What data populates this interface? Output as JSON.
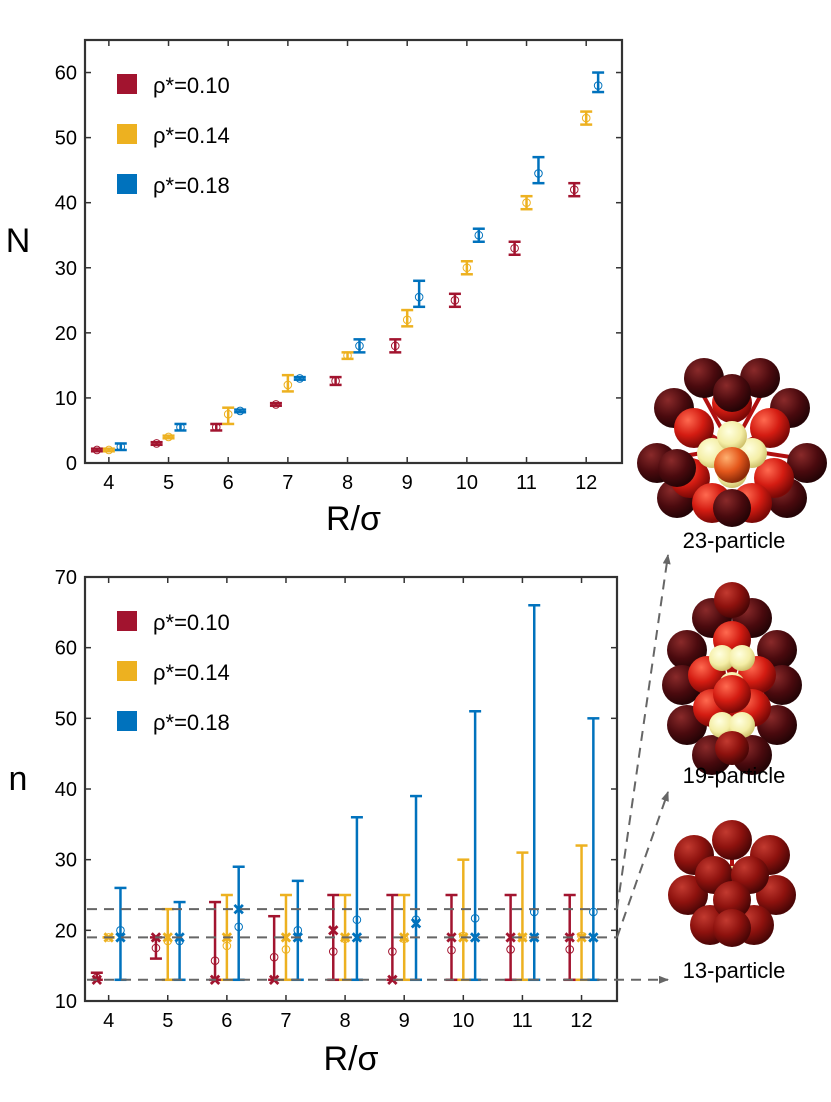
{
  "chart_data": [
    {
      "type": "scatter",
      "xlabel": "R/σ",
      "ylabel": "N",
      "xlim": [
        3.6,
        12.6
      ],
      "ylim": [
        0,
        65
      ],
      "xticks": [
        4,
        5,
        6,
        7,
        8,
        9,
        10,
        11,
        12
      ],
      "yticks": [
        0,
        10,
        20,
        30,
        40,
        50,
        60
      ],
      "legend": "top-left",
      "grid": false,
      "series": [
        {
          "name": "ρ*=0.10",
          "color": "#A2142F",
          "x": [
            4,
            5,
            6,
            7,
            8,
            9,
            10,
            11,
            12
          ],
          "mean": [
            2.0,
            3.0,
            5.5,
            9.0,
            12.6,
            18.0,
            25.0,
            33.0,
            42.0
          ],
          "err_low": [
            1.8,
            2.8,
            5.0,
            8.8,
            12.0,
            17.0,
            24.0,
            32.0,
            41.0
          ],
          "err_high": [
            2.2,
            3.2,
            6.0,
            9.2,
            13.2,
            19.0,
            26.0,
            34.0,
            43.0
          ]
        },
        {
          "name": "ρ*=0.14",
          "color": "#EDB120",
          "x": [
            4,
            5,
            6,
            7,
            8,
            9,
            10,
            11,
            12
          ],
          "mean": [
            2.0,
            4.0,
            7.5,
            12.0,
            16.5,
            22.0,
            30.0,
            40.0,
            53.0
          ],
          "err_low": [
            1.8,
            3.8,
            6.0,
            11.0,
            16.0,
            21.0,
            29.0,
            39.0,
            52.0
          ],
          "err_high": [
            2.2,
            4.2,
            8.5,
            13.5,
            17.0,
            23.5,
            31.0,
            41.0,
            54.0
          ]
        },
        {
          "name": "ρ*=0.18",
          "color": "#0072BD",
          "x": [
            4,
            5,
            6,
            7,
            8,
            9,
            10,
            11,
            12
          ],
          "mean": [
            2.5,
            5.5,
            8.0,
            13.0,
            18.0,
            25.5,
            35.0,
            44.5,
            58.0
          ],
          "err_low": [
            2.0,
            5.0,
            7.8,
            12.8,
            17.0,
            24.0,
            34.0,
            43.0,
            57.0
          ],
          "err_high": [
            3.0,
            6.0,
            8.2,
            13.2,
            19.0,
            28.0,
            36.0,
            47.0,
            60.0
          ]
        }
      ]
    },
    {
      "type": "scatter",
      "xlabel": "R/σ",
      "ylabel": "n",
      "xlim": [
        3.6,
        12.6
      ],
      "ylim": [
        10,
        70
      ],
      "xticks": [
        4,
        5,
        6,
        7,
        8,
        9,
        10,
        11,
        12
      ],
      "yticks": [
        10,
        20,
        30,
        40,
        50,
        60,
        70
      ],
      "legend": "top-left",
      "grid": false,
      "reference_lines": [
        13,
        19,
        23
      ],
      "series": [
        {
          "name": "ρ*=0.10",
          "color": "#A2142F",
          "x": [
            4,
            5,
            6,
            7,
            8,
            9,
            10,
            11,
            12
          ],
          "mode": [
            13,
            19,
            13,
            13,
            20,
            13,
            19,
            19,
            19
          ],
          "mean": [
            13.3,
            17.5,
            15.7,
            16.2,
            17.0,
            17.0,
            17.2,
            17.3,
            17.3
          ],
          "min": [
            13,
            16,
            13,
            13,
            13,
            13,
            13,
            13,
            13
          ],
          "max": [
            14,
            19,
            24,
            22,
            25,
            25,
            25,
            25,
            25
          ]
        },
        {
          "name": "ρ*=0.14",
          "color": "#EDB120",
          "x": [
            4,
            5,
            6,
            7,
            8,
            9,
            10,
            11,
            12
          ],
          "mode": [
            19,
            19,
            19,
            19,
            19,
            19,
            19,
            19,
            19
          ],
          "mean": [
            19.0,
            18.5,
            17.8,
            17.3,
            18.8,
            18.8,
            19.2,
            19.0,
            19.2
          ],
          "min": [
            19,
            13,
            13,
            13,
            13,
            13,
            13,
            13,
            13
          ],
          "max": [
            19,
            23,
            25,
            25,
            25,
            25,
            30,
            31,
            32
          ]
        },
        {
          "name": "ρ*=0.18",
          "color": "#0072BD",
          "x": [
            4,
            5,
            6,
            7,
            8,
            9,
            10,
            11,
            12
          ],
          "mode": [
            19,
            19,
            23,
            19,
            19,
            21,
            19,
            19,
            19
          ],
          "mean": [
            20.0,
            18.5,
            20.5,
            20.0,
            21.5,
            21.5,
            21.7,
            22.6,
            22.6
          ],
          "min": [
            13,
            13,
            13,
            13,
            13,
            13,
            13,
            13,
            13
          ],
          "max": [
            26,
            24,
            29,
            27,
            36,
            39,
            51,
            66,
            50
          ]
        }
      ]
    }
  ],
  "clusters": [
    {
      "label": "23-particle",
      "target_n": 23
    },
    {
      "label": "19-particle",
      "target_n": 19
    },
    {
      "label": "13-particle",
      "target_n": 13
    }
  ],
  "colors": {
    "dark_particle": "#4a0a0e",
    "red_particle": "#cc1a12",
    "orange_particle": "#e4571b",
    "core_particle": "#f4eea6",
    "dashed_line": "#666666"
  }
}
